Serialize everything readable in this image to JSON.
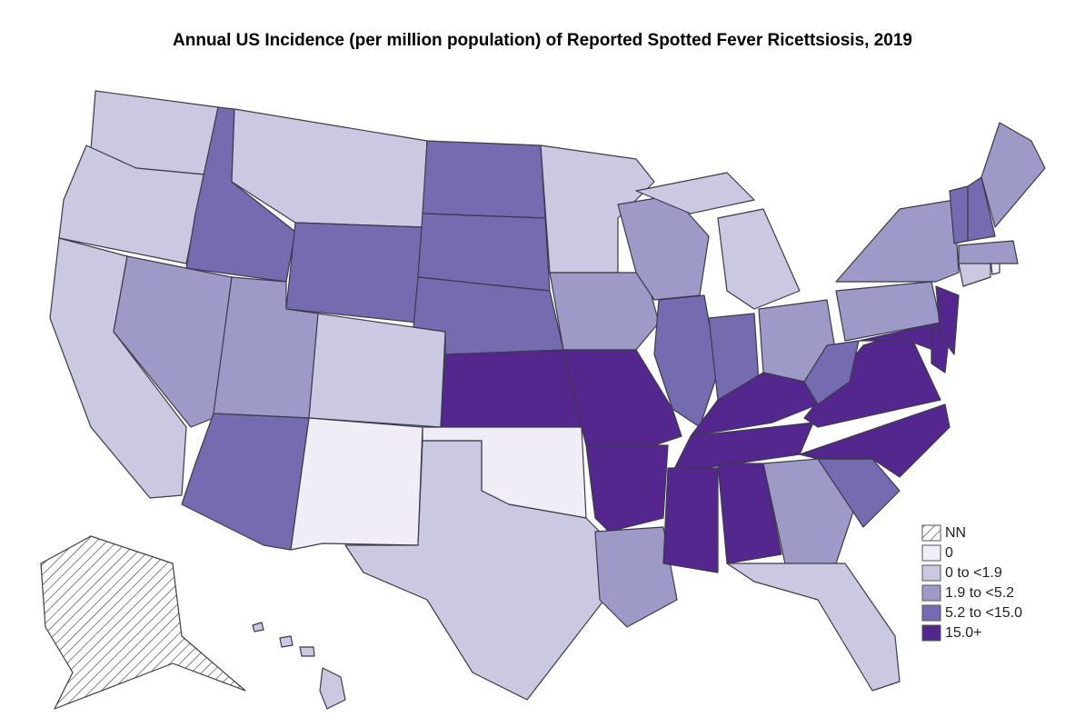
{
  "title": "Annual US Incidence (per million population) of Reported Spotted Fever Ricettsiosis, 2019",
  "legend": [
    {
      "label": "NN",
      "color": "#ffffff",
      "pattern": "hatch"
    },
    {
      "label": "0",
      "color": "#f0edf6"
    },
    {
      "label": "0 to <1.9",
      "color": "#cbc9e2"
    },
    {
      "label": "1.9 to <5.2",
      "color": "#9e9ac8"
    },
    {
      "label": "5.2 to <15.0",
      "color": "#756bb1"
    },
    {
      "label": "15.0+",
      "color": "#54278f"
    }
  ]
}
